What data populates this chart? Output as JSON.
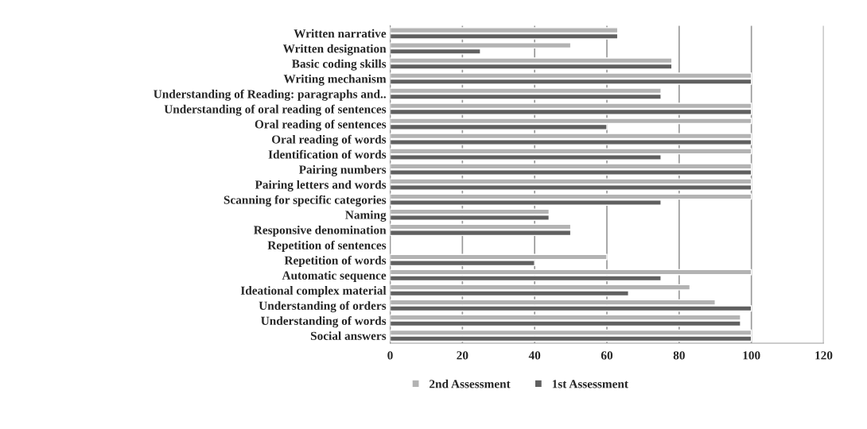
{
  "chart_data": {
    "type": "bar",
    "orientation": "horizontal",
    "categories": [
      "Written narrative",
      "Written designation",
      "Basic coding skills",
      "Writing mechanism",
      "Understanding of Reading: paragraphs and..",
      "Understanding of oral reading of sentences",
      "Oral reading of sentences",
      "Oral reading of words",
      "Identification of words",
      "Pairing numbers",
      "Pairing letters and words",
      "Scanning for specific categories",
      "Naming",
      "Responsive denomination",
      "Repetition of sentences",
      "Repetition of words",
      "Automatic sequence",
      "Ideational complex material",
      "Understanding of orders",
      "Understanding of words",
      "Social answers"
    ],
    "series": [
      {
        "name": "2nd Assessment",
        "color": "#b3b3b3",
        "values": [
          63,
          50,
          78,
          100,
          75,
          100,
          100,
          100,
          100,
          100,
          100,
          100,
          44,
          50,
          null,
          60,
          100,
          83,
          90,
          97,
          100
        ]
      },
      {
        "name": "1st Assessment",
        "color": "#606060",
        "values": [
          63,
          25,
          78,
          100,
          75,
          100,
          60,
          100,
          75,
          100,
          100,
          75,
          44,
          50,
          null,
          40,
          75,
          66,
          100,
          97,
          100
        ]
      }
    ],
    "xlim": [
      0,
      120
    ],
    "xticks": [
      0,
      20,
      40,
      60,
      80,
      100,
      120
    ],
    "grid": "x",
    "legend": "bottom"
  }
}
